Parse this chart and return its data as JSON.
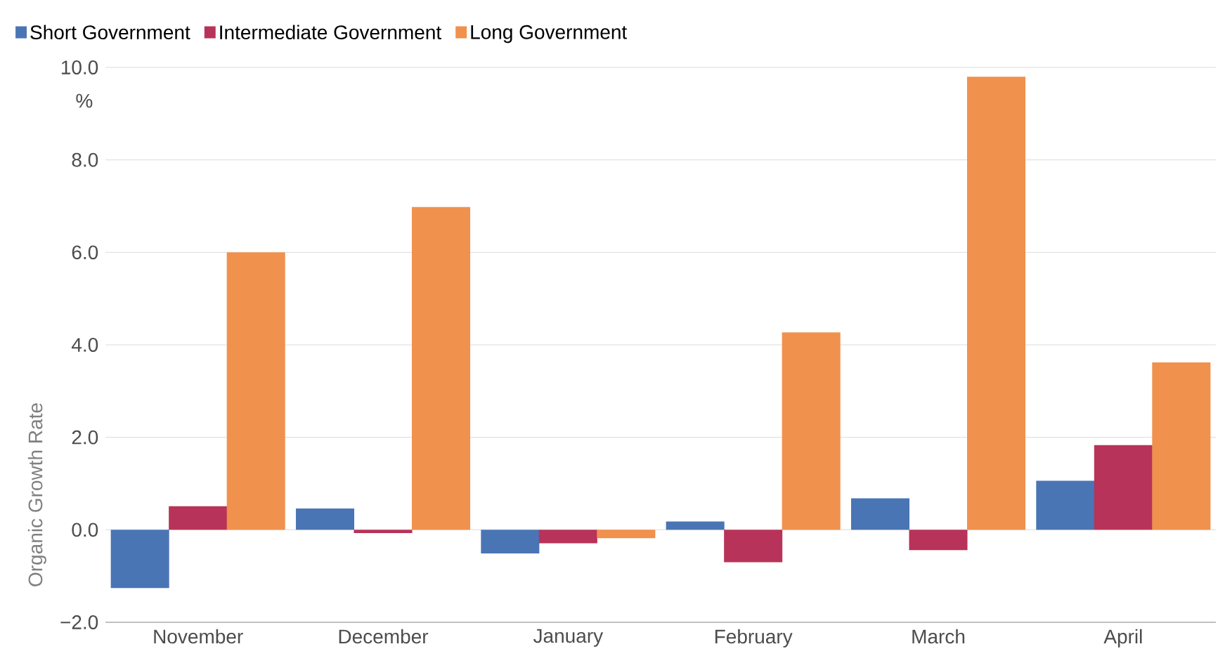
{
  "chart_data": {
    "type": "bar",
    "ylabel": "Organic Growth Rate",
    "categories": [
      "November",
      "December",
      "January",
      "February",
      "March",
      "April"
    ],
    "series": [
      {
        "name": "Short Government",
        "color": "#4a75b5",
        "values": [
          -1.26,
          0.46,
          -0.51,
          0.18,
          0.68,
          1.06
        ]
      },
      {
        "name": "Intermediate Government",
        "color": "#b83359",
        "values": [
          0.51,
          -0.07,
          -0.29,
          -0.7,
          -0.44,
          1.83
        ]
      },
      {
        "name": "Long Government",
        "color": "#f0914d",
        "values": [
          6.0,
          6.98,
          -0.18,
          4.27,
          9.8,
          3.62
        ]
      }
    ],
    "ylim": [
      -2,
      10
    ],
    "yticks": [
      {
        "value": -2,
        "label": "−2.0"
      },
      {
        "value": 0,
        "label": "0.0"
      },
      {
        "value": 2,
        "label": "2.0"
      },
      {
        "value": 4,
        "label": "4.0"
      },
      {
        "value": 6,
        "label": "6.0"
      },
      {
        "value": 8,
        "label": "8.0"
      },
      {
        "value": 10,
        "label": "10.0"
      }
    ],
    "annotations": [
      "%"
    ],
    "grid": "y",
    "legend": "top left"
  }
}
